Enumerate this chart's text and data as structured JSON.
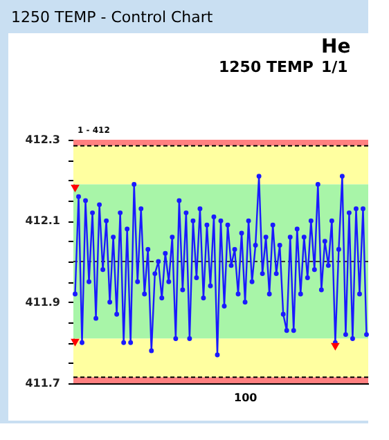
{
  "chart_data": {
    "type": "line",
    "title": "1250 TEMP",
    "annotations": [
      "1250 TEMP - Control Chart",
      "He",
      "1/1",
      "1 - 412",
      "100"
    ],
    "categories": [
      null,
      null,
      null,
      null,
      null,
      null,
      null,
      null,
      null,
      null,
      null,
      null,
      null,
      null,
      null,
      null,
      null,
      null,
      null,
      null,
      null,
      null,
      null,
      null,
      null,
      null,
      null,
      null,
      null,
      null,
      null,
      null,
      null,
      null,
      null,
      null,
      null,
      null,
      null,
      null,
      null,
      null,
      null,
      null,
      null,
      null,
      null,
      null,
      null,
      null,
      null,
      null,
      null,
      null,
      null,
      null,
      null,
      null,
      null,
      null,
      null,
      null,
      null,
      null,
      null,
      null,
      null,
      null,
      null,
      null,
      null,
      null,
      null,
      null,
      null,
      null,
      null,
      null,
      null,
      null,
      null,
      null,
      null,
      null,
      null
    ],
    "series": [
      {
        "type": "line",
        "color": "#1a1aff",
        "marker": "circle",
        "values": [
          411.92,
          412.16,
          411.8,
          412.15,
          411.95,
          412.12,
          411.86,
          412.14,
          411.98,
          412.1,
          411.9,
          412.06,
          411.87,
          412.12,
          411.8,
          412.08,
          411.8,
          412.19,
          411.95,
          412.13,
          411.92,
          412.03,
          411.78,
          411.97,
          412.0,
          411.91,
          412.02,
          411.95,
          412.06,
          411.81,
          412.15,
          411.93,
          412.12,
          411.81,
          412.1,
          411.96,
          412.13,
          411.91,
          412.09,
          411.94,
          412.11,
          411.77,
          412.1,
          411.89,
          412.09,
          411.99,
          412.03,
          411.92,
          412.07,
          411.9,
          412.1,
          411.95,
          412.04,
          412.21,
          411.97,
          412.06,
          411.92,
          412.09,
          411.97,
          412.04,
          411.87,
          411.83,
          412.06,
          411.83,
          412.08,
          411.92,
          412.06,
          411.96,
          412.1,
          411.98,
          412.19,
          411.93,
          412.05,
          411.99,
          412.1,
          411.8,
          412.03,
          412.21,
          411.82,
          412.12,
          411.81,
          412.13,
          411.92,
          412.13,
          411.82
        ]
      },
      {
        "type": "scatter",
        "color": "#ff0000",
        "marker": "triangle",
        "values": [
          412.18,
          null,
          null,
          null,
          null,
          null,
          null,
          null,
          null,
          null,
          null,
          null,
          null,
          null,
          null,
          null,
          null,
          null,
          null,
          null,
          null,
          null,
          null,
          null,
          null,
          null,
          null,
          null,
          null,
          null,
          null,
          null,
          null,
          null,
          null,
          null,
          null,
          null,
          null,
          null,
          null,
          null,
          null,
          null,
          null,
          null,
          null,
          null,
          null,
          null,
          null,
          null,
          null,
          null,
          null,
          null,
          null,
          null,
          null,
          null,
          null,
          null,
          null,
          null,
          null,
          null,
          null,
          null,
          null,
          null,
          null,
          null,
          null,
          null,
          null,
          411.79,
          null,
          null,
          null,
          null,
          null,
          null,
          null,
          null,
          null
        ]
      },
      {
        "type": "scatter",
        "color": "#ff0000",
        "marker": "triangle",
        "values": [
          411.8,
          null,
          null,
          null,
          null,
          null,
          null,
          null,
          null,
          null,
          null,
          null,
          null,
          null,
          null,
          null,
          null,
          null,
          null,
          null,
          null,
          null,
          null,
          null,
          null,
          null,
          null,
          null,
          null,
          null,
          null,
          null,
          null,
          null,
          null,
          null,
          null,
          null,
          null,
          null,
          null,
          null,
          null,
          null,
          null,
          null,
          null,
          null,
          null,
          null,
          null,
          null,
          null,
          null,
          null,
          null,
          null,
          null,
          null,
          null,
          null,
          null,
          null,
          null,
          null,
          null,
          null,
          null,
          null,
          null,
          null,
          null,
          null,
          null,
          null,
          null,
          null,
          null,
          null,
          null,
          null,
          null,
          null,
          null,
          null
        ]
      }
    ],
    "ylim": [
      411.7,
      412.3
    ],
    "yticks": [
      411.7,
      {
        "value": 411.75,
        "label": null
      },
      {
        "value": 411.8,
        "label": null
      },
      {
        "value": 411.85,
        "label": null
      },
      411.9,
      {
        "value": 411.95,
        "label": null
      },
      {
        "value": 412.0,
        "label": null
      },
      {
        "value": 412.05,
        "label": null
      },
      412.1,
      {
        "value": 412.15,
        "label": null
      },
      {
        "value": 412.2,
        "label": null
      },
      {
        "value": 412.25,
        "label": null
      },
      412.3
    ],
    "bands": [
      {
        "axis": "y",
        "from": 412.285,
        "to": 412.3,
        "color": "#ff8080"
      },
      {
        "axis": "y",
        "from": 412.19,
        "to": 412.285,
        "color": "#ffffa0"
      },
      {
        "axis": "y",
        "from": 411.81,
        "to": 412.19,
        "color": "#a8f5a8"
      },
      {
        "axis": "y",
        "from": 411.715,
        "to": 411.81,
        "color": "#ffffa0"
      },
      {
        "axis": "y",
        "from": 411.7,
        "to": 411.715,
        "color": "#ff8080"
      }
    ],
    "ref_lines": [
      {
        "axis": "y",
        "value": 412.285,
        "color": "#000000",
        "line_style": "dashed"
      },
      {
        "axis": "y",
        "value": 412.0,
        "color": "#333333",
        "line_style": "dashed"
      },
      {
        "axis": "y",
        "value": 411.715,
        "color": "#000000",
        "line_style": "dashed"
      }
    ],
    "grid": false
  }
}
